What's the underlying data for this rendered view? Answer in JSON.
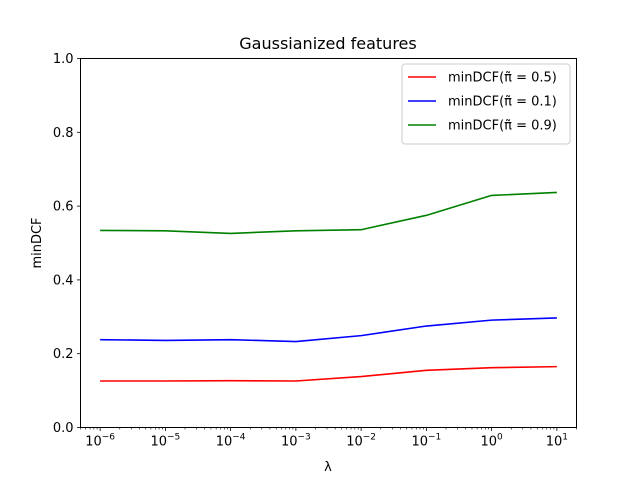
{
  "chart_data": {
    "type": "line",
    "title": "Gaussianized features",
    "xlabel": "λ",
    "ylabel": "minDCF",
    "xscale": "log",
    "x": [
      1e-06,
      1e-05,
      0.0001,
      0.001,
      0.01,
      0.1,
      1,
      10
    ],
    "xlim": [
      5e-07,
      20
    ],
    "ylim": [
      0,
      1.0
    ],
    "x_ticks": [
      {
        "value": 1e-06,
        "base": "10",
        "exp": "−6"
      },
      {
        "value": 1e-05,
        "base": "10",
        "exp": "−5"
      },
      {
        "value": 0.0001,
        "base": "10",
        "exp": "−4"
      },
      {
        "value": 0.001,
        "base": "10",
        "exp": "−3"
      },
      {
        "value": 0.01,
        "base": "10",
        "exp": "−2"
      },
      {
        "value": 0.1,
        "base": "10",
        "exp": "−1"
      },
      {
        "value": 1,
        "base": "10",
        "exp": "0"
      },
      {
        "value": 10,
        "base": "10",
        "exp": "1"
      }
    ],
    "y_ticks": [
      {
        "value": 0.0,
        "label": "0.0"
      },
      {
        "value": 0.2,
        "label": "0.2"
      },
      {
        "value": 0.4,
        "label": "0.4"
      },
      {
        "value": 0.6,
        "label": "0.6"
      },
      {
        "value": 0.8,
        "label": "0.8"
      },
      {
        "value": 1.0,
        "label": "1.0"
      }
    ],
    "grid": false,
    "legend_position": "top-right",
    "series": [
      {
        "name": "minDCF(π̃ = 0.5)",
        "color": "#ff0000",
        "values": [
          0.126,
          0.126,
          0.127,
          0.126,
          0.138,
          0.155,
          0.162,
          0.165
        ]
      },
      {
        "name": "minDCF(π̃ = 0.1)",
        "color": "#0000ff",
        "values": [
          0.238,
          0.236,
          0.238,
          0.233,
          0.249,
          0.275,
          0.291,
          0.297
        ]
      },
      {
        "name": "minDCF(π̃ = 0.9)",
        "color": "#008000",
        "values": [
          0.534,
          0.533,
          0.526,
          0.533,
          0.536,
          0.575,
          0.629,
          0.637
        ]
      }
    ]
  }
}
